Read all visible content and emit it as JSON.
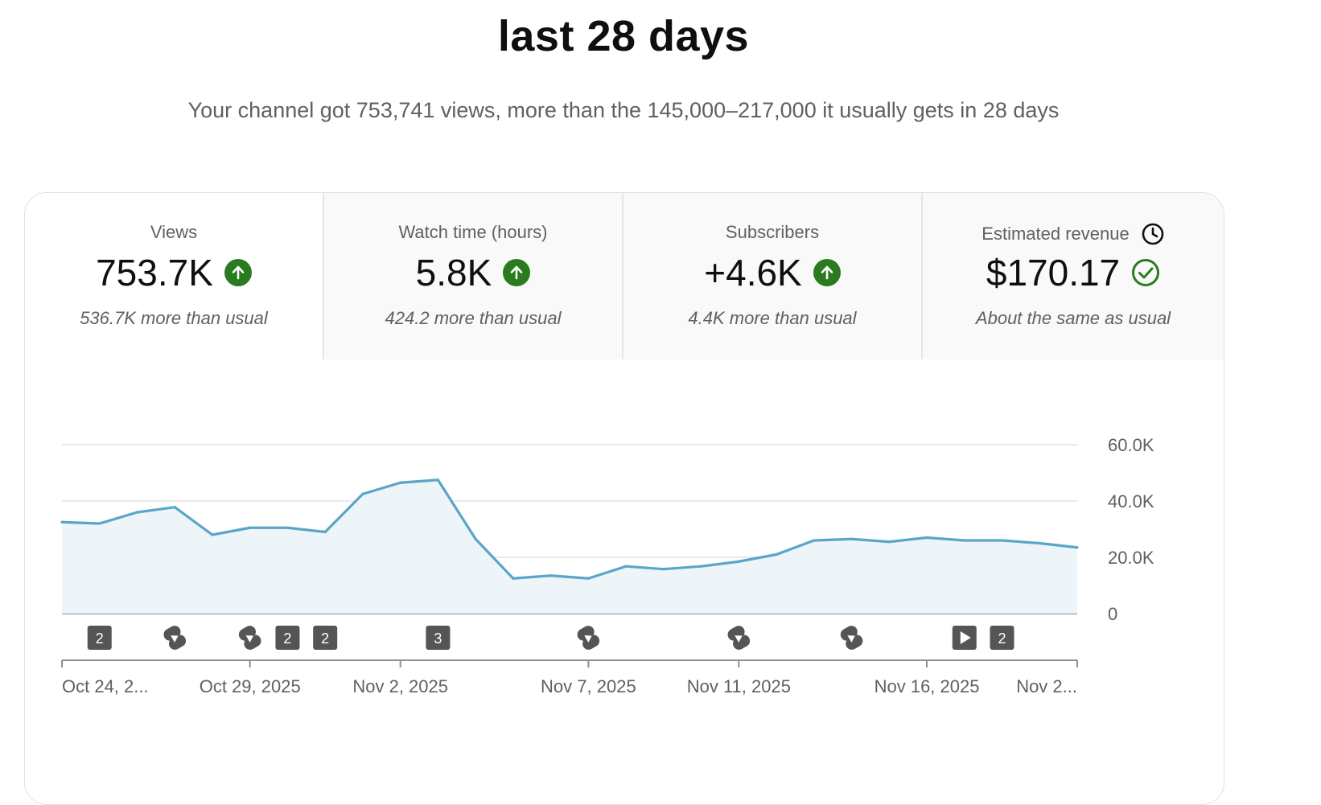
{
  "header": {
    "title": "last 28 days",
    "subtitle": "Your channel got 753,741 views, more than the 145,000–217,000 it usually gets in 28 days"
  },
  "metrics": [
    {
      "label": "Views",
      "value": "753.7K",
      "note": "536.7K more than usual",
      "status_icon": "arrow-up-icon",
      "selected": true
    },
    {
      "label": "Watch time (hours)",
      "value": "5.8K",
      "note": "424.2 more than usual",
      "status_icon": "arrow-up-icon",
      "selected": false
    },
    {
      "label": "Subscribers",
      "value": "+4.6K",
      "note": "4.4K more than usual",
      "status_icon": "arrow-up-icon",
      "selected": false
    },
    {
      "label": "Estimated revenue",
      "value": "$170.17",
      "note": "About the same as usual",
      "status_icon": "check-circle-icon",
      "label_icon": "clock-icon",
      "selected": false
    }
  ],
  "colors": {
    "accent_line": "#5aa5c8",
    "area_fill": "#eef5f9",
    "up_badge": "#2a7a1f",
    "marker_bg": "#555555"
  },
  "chart_data": {
    "type": "area",
    "series": [
      {
        "values": [
          32500,
          32000,
          36000,
          37800,
          28000,
          30500,
          30500,
          29000,
          42500,
          46500,
          47500,
          26500,
          12500,
          13500,
          12500,
          16800,
          15800,
          16800,
          18500,
          21000,
          26000,
          26500,
          25500,
          27000,
          26000,
          26000,
          25000,
          23500
        ]
      }
    ],
    "ylim": [
      0,
      60000
    ],
    "y_ticks": [
      {
        "value": 0,
        "label": "0"
      },
      {
        "value": 20000,
        "label": "20.0K"
      },
      {
        "value": 40000,
        "label": "40.0K"
      },
      {
        "value": 60000,
        "label": "60.0K"
      }
    ],
    "x_ticks": [
      {
        "index": 0,
        "label": "Oct 24, 2..."
      },
      {
        "index": 5,
        "label": "Oct 29, 2025"
      },
      {
        "index": 9,
        "label": "Nov 2, 2025"
      },
      {
        "index": 14,
        "label": "Nov 7, 2025"
      },
      {
        "index": 18,
        "label": "Nov 11, 2025"
      },
      {
        "index": 23,
        "label": "Nov 16, 2025"
      },
      {
        "index": 27,
        "label": "Nov 2..."
      }
    ],
    "grid": true,
    "markers": [
      {
        "index": 1,
        "kind": "count",
        "text": "2"
      },
      {
        "index": 3,
        "kind": "shorts"
      },
      {
        "index": 5,
        "kind": "shorts"
      },
      {
        "index": 6,
        "kind": "count",
        "text": "2"
      },
      {
        "index": 7,
        "kind": "count",
        "text": "2"
      },
      {
        "index": 10,
        "kind": "count",
        "text": "3"
      },
      {
        "index": 14,
        "kind": "shorts"
      },
      {
        "index": 18,
        "kind": "shorts"
      },
      {
        "index": 21,
        "kind": "shorts"
      },
      {
        "index": 24,
        "kind": "video"
      },
      {
        "index": 25,
        "kind": "count",
        "text": "2"
      }
    ]
  }
}
